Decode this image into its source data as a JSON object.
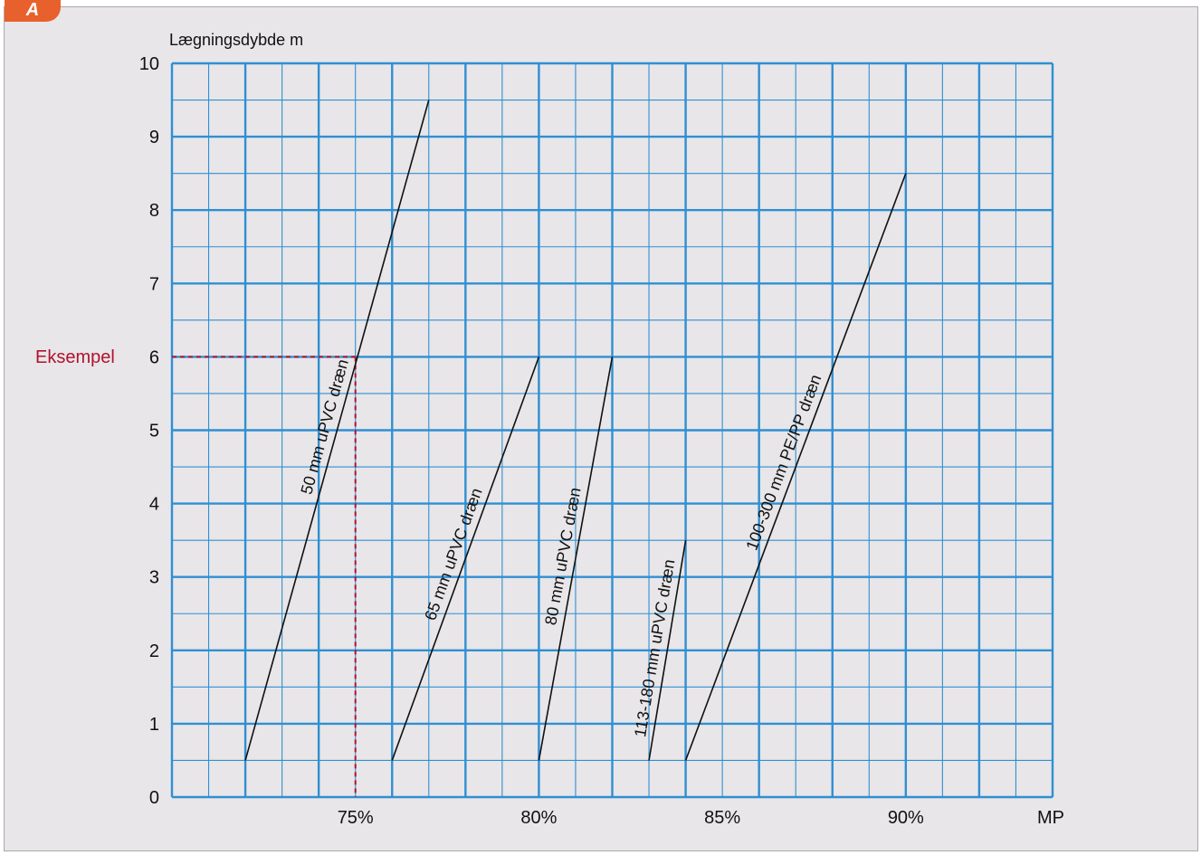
{
  "badge": {
    "label": "A",
    "color": "#e8602c"
  },
  "chart_data": {
    "type": "line",
    "ylabel": "Lægningsdybde m",
    "xlabel": "MP",
    "xlim": [
      70,
      94
    ],
    "ylim": [
      0,
      10
    ],
    "x_ticks": [
      {
        "value": 75,
        "label": "75%"
      },
      {
        "value": 80,
        "label": "80%"
      },
      {
        "value": 85,
        "label": "85%"
      },
      {
        "value": 90,
        "label": "90%"
      }
    ],
    "y_ticks": [
      {
        "value": 0,
        "label": "0"
      },
      {
        "value": 1,
        "label": "1"
      },
      {
        "value": 2,
        "label": "2"
      },
      {
        "value": 3,
        "label": "3"
      },
      {
        "value": 4,
        "label": "4"
      },
      {
        "value": 5,
        "label": "5"
      },
      {
        "value": 6,
        "label": "6"
      },
      {
        "value": 7,
        "label": "7"
      },
      {
        "value": 8,
        "label": "8"
      },
      {
        "value": 9,
        "label": "9"
      },
      {
        "value": 10,
        "label": "10"
      }
    ],
    "grid": true,
    "grid_color": "#2f8fd3",
    "line_color": "#111111",
    "series": [
      {
        "name": "50 mm uPVC dræn",
        "points": [
          [
            72,
            0.5
          ],
          [
            77,
            9.5
          ]
        ]
      },
      {
        "name": "65 mm uPVC dræn",
        "points": [
          [
            76,
            0.5
          ],
          [
            80,
            6
          ]
        ]
      },
      {
        "name": "80 mm uPVC dræn",
        "points": [
          [
            80,
            0.5
          ],
          [
            82,
            6
          ]
        ]
      },
      {
        "name": "113-180 mm uPVC dræn",
        "points": [
          [
            83,
            0.5
          ],
          [
            84,
            3.5
          ]
        ]
      },
      {
        "name": "100-300 mm PE/PP dræn",
        "points": [
          [
            84,
            0.5
          ],
          [
            90,
            8.5
          ]
        ]
      }
    ],
    "example": {
      "label": "Eksempel",
      "x": 75,
      "y": 6,
      "color": "#b0122e"
    }
  }
}
